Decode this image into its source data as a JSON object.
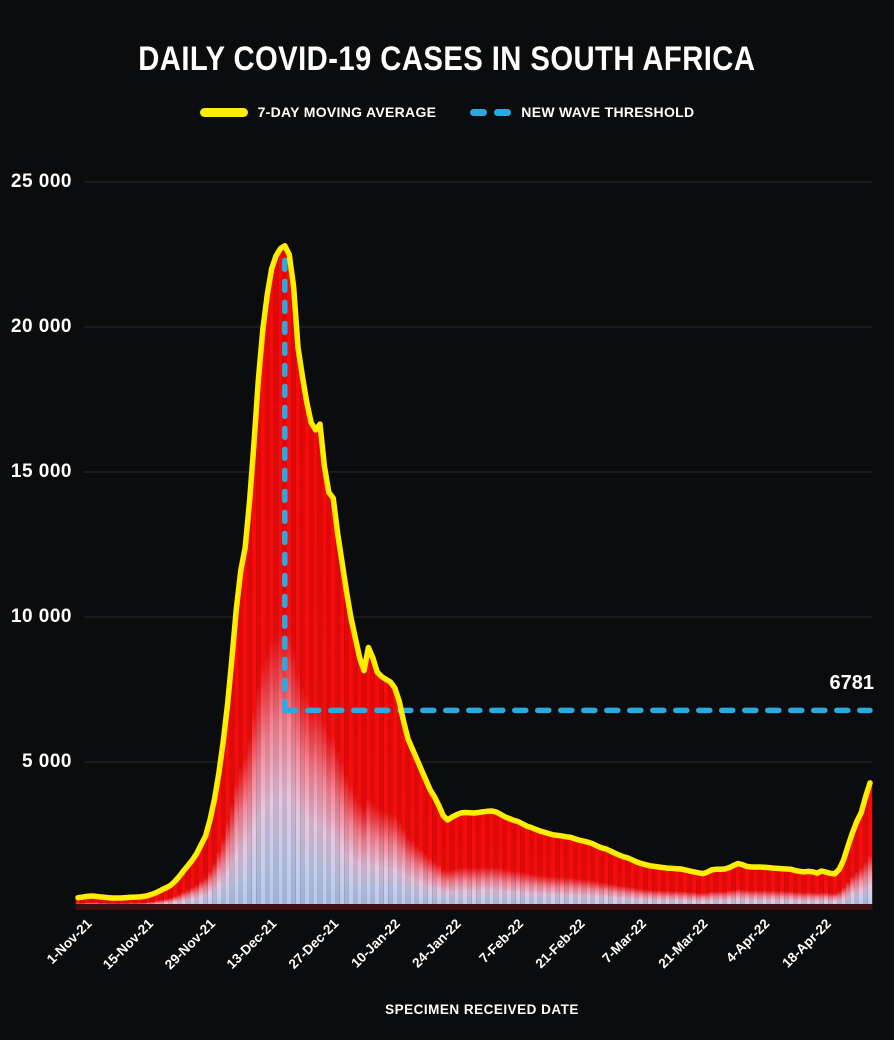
{
  "page": {
    "background": "#0b0c0d"
  },
  "header": {
    "title": "DAILY COVID-19 CASES IN SOUTH AFRICA"
  },
  "legend": {
    "items": [
      {
        "label": "7-DAY MOVING AVERAGE",
        "swatch": "solid-line",
        "color": "#ffee00"
      },
      {
        "label": "NEW WAVE THRESHOLD",
        "swatch": "dashed-line",
        "color": "#29abe2"
      }
    ]
  },
  "axes": {
    "x_title": "SPECIMEN RECEIVED DATE"
  },
  "threshold_label": "6781",
  "chart_data": {
    "type": "area",
    "title": "DAILY COVID-19 CASES IN SOUTH AFRICA",
    "xlabel": "SPECIMEN RECEIVED DATE",
    "ylabel": "",
    "grid": "horizontal",
    "legend_position": "top",
    "ylim": [
      0,
      26000
    ],
    "x_start_date": "1-Nov-21",
    "x_unit": "days since 1-Nov-21",
    "x_ticks": [
      {
        "day": 0,
        "label": "1-Nov-21"
      },
      {
        "day": 14,
        "label": "15-Nov-21"
      },
      {
        "day": 28,
        "label": "29-Nov-21"
      },
      {
        "day": 42,
        "label": "13-Dec-21"
      },
      {
        "day": 56,
        "label": "27-Dec-21"
      },
      {
        "day": 70,
        "label": "10-Jan-22"
      },
      {
        "day": 84,
        "label": "24-Jan-22"
      },
      {
        "day": 98,
        "label": "7-Feb-22"
      },
      {
        "day": 112,
        "label": "21-Feb-22"
      },
      {
        "day": 126,
        "label": "7-Mar-22"
      },
      {
        "day": 140,
        "label": "21-Mar-22"
      },
      {
        "day": 154,
        "label": "4-Apr-22"
      },
      {
        "day": 168,
        "label": "18-Apr-22"
      }
    ],
    "y_ticks": [
      {
        "value": 5000,
        "label": "5 000"
      },
      {
        "value": 10000,
        "label": "10 000"
      },
      {
        "value": 15000,
        "label": "15 000"
      },
      {
        "value": 20000,
        "label": "20 000"
      },
      {
        "value": 25000,
        "label": "25 000"
      }
    ],
    "threshold": {
      "value": 6781,
      "label": "6781",
      "peak_day": 47
    },
    "series": [
      {
        "name": "7-DAY MOVING AVERAGE",
        "color": "#ffee00",
        "values": [
          320,
          340,
          365,
          380,
          370,
          350,
          335,
          320,
          310,
          310,
          315,
          325,
          335,
          340,
          350,
          365,
          400,
          450,
          510,
          590,
          660,
          740,
          880,
          1050,
          1250,
          1430,
          1620,
          1850,
          2150,
          2450,
          3000,
          3700,
          4600,
          5700,
          7000,
          8600,
          10300,
          11600,
          12400,
          14000,
          16000,
          18200,
          19900,
          21100,
          22000,
          22450,
          22700,
          22800,
          22500,
          21400,
          19300,
          18300,
          17400,
          16700,
          16450,
          16650,
          15200,
          14300,
          14100,
          12900,
          11900,
          10900,
          10000,
          9300,
          8600,
          8150,
          8950,
          8600,
          8100,
          7950,
          7850,
          7760,
          7550,
          7100,
          6400,
          5800,
          5450,
          5100,
          4750,
          4400,
          4050,
          3800,
          3500,
          3150,
          3000,
          3100,
          3180,
          3240,
          3260,
          3250,
          3240,
          3260,
          3280,
          3300,
          3310,
          3280,
          3200,
          3110,
          3050,
          2990,
          2950,
          2870,
          2790,
          2740,
          2680,
          2620,
          2580,
          2530,
          2490,
          2470,
          2450,
          2420,
          2400,
          2350,
          2300,
          2270,
          2230,
          2180,
          2100,
          2040,
          2000,
          1930,
          1860,
          1790,
          1730,
          1690,
          1620,
          1550,
          1500,
          1460,
          1420,
          1400,
          1380,
          1360,
          1340,
          1330,
          1320,
          1310,
          1280,
          1240,
          1210,
          1180,
          1150,
          1200,
          1280,
          1300,
          1300,
          1310,
          1360,
          1430,
          1500,
          1460,
          1400,
          1380,
          1380,
          1380,
          1370,
          1360,
          1340,
          1330,
          1320,
          1310,
          1300,
          1260,
          1230,
          1210,
          1230,
          1210,
          1170,
          1240,
          1200,
          1160,
          1140,
          1300,
          1620,
          2100,
          2550,
          2950,
          3250,
          3800,
          4280
        ]
      }
    ],
    "colors": {
      "area_top": "#f90a0a",
      "area_fade_pink": "#fa8798",
      "area_fade_bottom": "#b3c8ef",
      "threshold": "#29abe2",
      "moving_average": "#ffee00",
      "gridline": "#2a2b2c",
      "baseline_strip": "#3e1012",
      "background": "#0b0c0d"
    }
  }
}
